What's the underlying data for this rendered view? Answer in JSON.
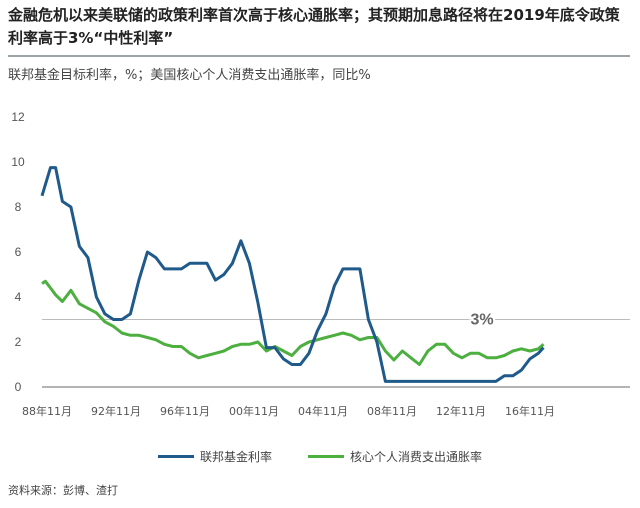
{
  "header": {
    "title": "金融危机以来美联储的政策利率首次高于核心通胀率；其预期加息路径将在2019年底令政策利率高于3%“中性利率”",
    "subtitle": "联邦基金目标利率，%；美国核心个人消费支出通胀率，同比%"
  },
  "footer": {
    "source": "资料来源：彭博、渣打"
  },
  "colors": {
    "fed_funds": "#1f5a8a",
    "core_pce": "#4caf3f",
    "reference_line": "#bbbbbb",
    "axis": "#888888"
  },
  "chart_data": {
    "type": "line",
    "title": "金融危机以来美联储的政策利率首次高于核心通胀率；其预期加息路径将在2019年底令政策利率高于3%“中性利率”",
    "subtitle": "联邦基金目标利率，%；美国核心个人消费支出通胀率，同比%",
    "xlabel": "",
    "ylabel": "%",
    "ylim": [
      0,
      12
    ],
    "yticks": [
      0,
      2,
      4,
      6,
      8,
      10,
      12
    ],
    "xticks": [
      "88年11月",
      "92年11月",
      "96年11月",
      "00年11月",
      "04年11月",
      "08年11月",
      "12年11月",
      "16年11月"
    ],
    "grid": false,
    "legend_position": "bottom",
    "annotations": [
      {
        "text": "3%",
        "y": 3,
        "type": "horizontal_reference_line"
      }
    ],
    "x": [
      1988.8,
      1989.0,
      1989.3,
      1989.6,
      1990.0,
      1990.5,
      1991.0,
      1991.5,
      1992.0,
      1992.5,
      1993.0,
      1993.5,
      1994.0,
      1994.5,
      1995.0,
      1995.5,
      1996.0,
      1996.5,
      1997.0,
      1997.5,
      1998.0,
      1998.5,
      1999.0,
      1999.5,
      2000.0,
      2000.5,
      2001.0,
      2001.5,
      2002.0,
      2002.5,
      2003.0,
      2003.5,
      2004.0,
      2004.5,
      2005.0,
      2005.5,
      2006.0,
      2006.5,
      2007.0,
      2007.5,
      2008.0,
      2008.5,
      2009.0,
      2009.5,
      2010.0,
      2010.5,
      2011.0,
      2011.5,
      2012.0,
      2012.5,
      2013.0,
      2013.5,
      2014.0,
      2014.5,
      2015.0,
      2015.5,
      2016.0,
      2016.5,
      2017.0,
      2017.5,
      2018.0,
      2018.3
    ],
    "series": [
      {
        "name": "联邦基金利率",
        "values": [
          8.5,
          9.0,
          9.75,
          9.75,
          8.25,
          8.0,
          6.25,
          5.75,
          4.0,
          3.25,
          3.0,
          3.0,
          3.25,
          4.75,
          6.0,
          5.75,
          5.25,
          5.25,
          5.25,
          5.5,
          5.5,
          5.5,
          4.75,
          5.0,
          5.5,
          6.5,
          5.5,
          3.75,
          1.75,
          1.75,
          1.25,
          1.0,
          1.0,
          1.5,
          2.5,
          3.25,
          4.5,
          5.25,
          5.25,
          5.25,
          3.0,
          2.0,
          0.25,
          0.25,
          0.25,
          0.25,
          0.25,
          0.25,
          0.25,
          0.25,
          0.25,
          0.25,
          0.25,
          0.25,
          0.25,
          0.25,
          0.5,
          0.5,
          0.75,
          1.25,
          1.5,
          1.75
        ]
      },
      {
        "name": "核心个人消费支出通胀率",
        "values": [
          4.6,
          4.7,
          4.4,
          4.1,
          3.8,
          4.3,
          3.7,
          3.5,
          3.3,
          2.9,
          2.7,
          2.4,
          2.3,
          2.3,
          2.2,
          2.1,
          1.9,
          1.8,
          1.8,
          1.5,
          1.3,
          1.4,
          1.5,
          1.6,
          1.8,
          1.9,
          1.9,
          2.0,
          1.6,
          1.8,
          1.6,
          1.4,
          1.8,
          2.0,
          2.1,
          2.2,
          2.3,
          2.4,
          2.3,
          2.1,
          2.2,
          2.2,
          1.6,
          1.2,
          1.6,
          1.3,
          1.0,
          1.6,
          1.9,
          1.9,
          1.5,
          1.3,
          1.5,
          1.5,
          1.3,
          1.3,
          1.4,
          1.6,
          1.7,
          1.6,
          1.7,
          1.9
        ]
      }
    ]
  },
  "legend": {
    "items": [
      {
        "label": "联邦基金利率"
      },
      {
        "label": "核心个人消费支出通胀率"
      }
    ]
  },
  "axis": {
    "reference_label": "3%"
  }
}
